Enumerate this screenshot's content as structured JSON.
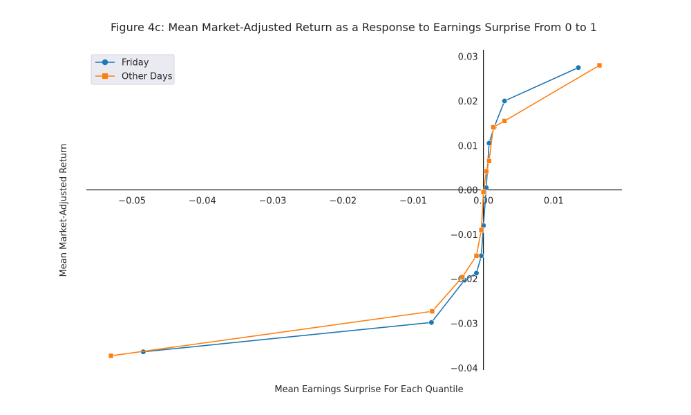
{
  "chart_data": {
    "type": "line",
    "title": "Figure 4c: Mean Market-Adjusted Return as a Response to Earnings Surprise From 0 to 1",
    "xlabel": "Mean Earnings Surprise For Each Quantile",
    "ylabel": "Mean Market-Adjusted Return",
    "xlim": [
      -0.0565,
      0.0197
    ],
    "ylim": [
      -0.0405,
      0.0315
    ],
    "x_ticks": [
      -0.05,
      -0.04,
      -0.03,
      -0.02,
      -0.01,
      0.0,
      0.01
    ],
    "x_tick_labels": [
      "−0.05",
      "−0.04",
      "−0.03",
      "−0.02",
      "−0.01",
      "0.00",
      "0.01"
    ],
    "y_ticks": [
      0.03,
      0.02,
      0.01,
      0.0,
      -0.01,
      -0.02,
      -0.03,
      -0.04
    ],
    "y_tick_labels": [
      "0.03",
      "0.02",
      "0.01",
      "0.00",
      "−0.01",
      "−0.02",
      "−0.03",
      "−0.04"
    ],
    "grid": false,
    "legend_position": "top-left",
    "axes_through_origin": true,
    "series": [
      {
        "name": "Friday",
        "color": "#1f77b4",
        "marker": "circle",
        "points": [
          [
            -0.0484,
            -0.0364
          ],
          [
            -0.0074,
            -0.0298
          ],
          [
            -0.0027,
            -0.0203
          ],
          [
            -0.001,
            -0.0187
          ],
          [
            -0.0003,
            -0.0148
          ],
          [
            0.0,
            -0.008
          ],
          [
            0.0004,
            0.0005
          ],
          [
            0.0008,
            0.0105
          ],
          [
            0.0015,
            0.014
          ],
          [
            0.003,
            0.02
          ],
          [
            0.0135,
            0.0275
          ]
        ]
      },
      {
        "name": "Other Days",
        "color": "#ff7f0e",
        "marker": "square",
        "points": [
          [
            -0.053,
            -0.0373
          ],
          [
            -0.0073,
            -0.0273
          ],
          [
            -0.003,
            -0.0196
          ],
          [
            -0.001,
            -0.0148
          ],
          [
            -0.0003,
            -0.009
          ],
          [
            0.0,
            -0.0005
          ],
          [
            0.0004,
            0.0042
          ],
          [
            0.0008,
            0.0065
          ],
          [
            0.0014,
            0.0141
          ],
          [
            0.003,
            0.0155
          ],
          [
            0.0165,
            0.028
          ]
        ]
      }
    ]
  }
}
